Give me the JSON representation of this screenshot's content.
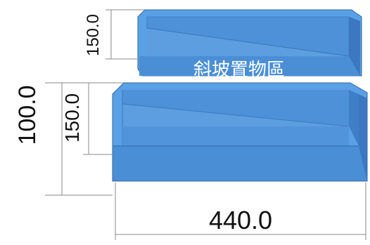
{
  "title": "斜坡置物區",
  "dimensions": {
    "top_box_height": "150.0",
    "bottom_box_height": "150.0",
    "front_height": "100.0",
    "width": "440.0"
  },
  "colors": {
    "box_fill": "#4a8fd6",
    "box_top": "#5aa0e6",
    "box_dark": "#3b78bf",
    "inner": "#5c9ee0",
    "outline": "#2f67a6",
    "dim_line": "#8a8a8a"
  }
}
